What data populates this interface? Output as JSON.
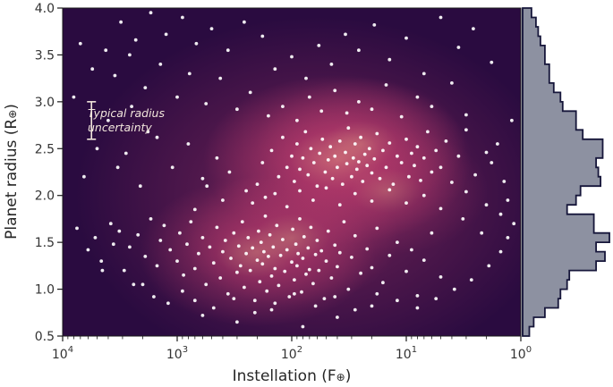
{
  "chart_data": {
    "type": "scatter",
    "xlabel": "Instellation (F",
    "xlabel_symbol": "⊕",
    "xlabel_close": ")",
    "ylabel": "Planet radius (R",
    "ylabel_symbol": "⊕",
    "ylabel_close": ")",
    "x_scale": "log",
    "x_reversed": true,
    "xlim": [
      10000,
      1
    ],
    "ylim": [
      0.5,
      4.0
    ],
    "x_ticks": [
      {
        "value": 10000,
        "base": "10",
        "exp": "4"
      },
      {
        "value": 1000,
        "base": "10",
        "exp": "3"
      },
      {
        "value": 100,
        "base": "10",
        "exp": "2"
      },
      {
        "value": 10,
        "base": "10",
        "exp": "1"
      },
      {
        "value": 1,
        "base": "10",
        "exp": "0"
      }
    ],
    "y_ticks": [
      "0.5",
      "1.0",
      "1.5",
      "2.0",
      "2.5",
      "3.0",
      "3.5",
      "4.0"
    ],
    "annotation": {
      "line1": "Typical radius",
      "line2": "uncertainty",
      "error_bar_radius_center": 2.8,
      "error_bar_half_height": 0.2,
      "error_bar_instellation": 5600
    },
    "colors": {
      "density_low": "#2a0b40",
      "density_mid": "#b3396a",
      "density_high": "#fbc98f",
      "points": "#ffffff",
      "histogram_fill": "#8d91a1",
      "histogram_edge": "#16163a"
    },
    "density_peaks": [
      {
        "instellation": 40,
        "radius": 2.38,
        "weight": 1.0
      },
      {
        "instellation": 25,
        "radius": 2.55,
        "weight": 0.45
      },
      {
        "instellation": 200,
        "radius": 1.4,
        "weight": 0.7
      },
      {
        "instellation": 100,
        "radius": 1.55,
        "weight": 0.5
      },
      {
        "instellation": 15,
        "radius": 2.05,
        "weight": 0.4
      }
    ],
    "histogram": {
      "orientation": "horizontal",
      "bins": [
        {
          "from": 0.5,
          "to": 0.6,
          "count": 3
        },
        {
          "from": 0.6,
          "to": 0.7,
          "count": 5
        },
        {
          "from": 0.7,
          "to": 0.8,
          "count": 10
        },
        {
          "from": 0.8,
          "to": 0.9,
          "count": 16
        },
        {
          "from": 0.9,
          "to": 1.0,
          "count": 17
        },
        {
          "from": 1.0,
          "to": 1.1,
          "count": 20
        },
        {
          "from": 1.1,
          "to": 1.2,
          "count": 21
        },
        {
          "from": 1.2,
          "to": 1.3,
          "count": 33
        },
        {
          "from": 1.3,
          "to": 1.4,
          "count": 37
        },
        {
          "from": 1.4,
          "to": 1.5,
          "count": 33
        },
        {
          "from": 1.5,
          "to": 1.6,
          "count": 39
        },
        {
          "from": 1.6,
          "to": 1.7,
          "count": 32
        },
        {
          "from": 1.7,
          "to": 1.8,
          "count": 32
        },
        {
          "from": 1.8,
          "to": 1.9,
          "count": 20
        },
        {
          "from": 1.9,
          "to": 2.0,
          "count": 24
        },
        {
          "from": 2.0,
          "to": 2.1,
          "count": 26
        },
        {
          "from": 2.1,
          "to": 2.2,
          "count": 35
        },
        {
          "from": 2.2,
          "to": 2.3,
          "count": 34
        },
        {
          "from": 2.3,
          "to": 2.4,
          "count": 33
        },
        {
          "from": 2.4,
          "to": 2.5,
          "count": 36
        },
        {
          "from": 2.5,
          "to": 2.6,
          "count": 36
        },
        {
          "from": 2.6,
          "to": 2.7,
          "count": 27
        },
        {
          "from": 2.7,
          "to": 2.8,
          "count": 24
        },
        {
          "from": 2.8,
          "to": 2.9,
          "count": 24
        },
        {
          "from": 2.9,
          "to": 3.0,
          "count": 18
        },
        {
          "from": 3.0,
          "to": 3.1,
          "count": 17
        },
        {
          "from": 3.1,
          "to": 3.2,
          "count": 14
        },
        {
          "from": 3.2,
          "to": 3.3,
          "count": 12
        },
        {
          "from": 3.3,
          "to": 3.4,
          "count": 12
        },
        {
          "from": 3.4,
          "to": 3.5,
          "count": 10
        },
        {
          "from": 3.5,
          "to": 3.6,
          "count": 10
        },
        {
          "from": 3.6,
          "to": 3.7,
          "count": 8
        },
        {
          "from": 3.7,
          "to": 3.8,
          "count": 7
        },
        {
          "from": 3.8,
          "to": 3.9,
          "count": 6
        },
        {
          "from": 3.9,
          "to": 4.0,
          "count": 4
        }
      ]
    },
    "points": [
      [
        3200,
        1.62
      ],
      [
        2600,
        1.45
      ],
      [
        2200,
        1.58
      ],
      [
        1900,
        1.35
      ],
      [
        1700,
        1.75
      ],
      [
        1500,
        1.25
      ],
      [
        1400,
        1.52
      ],
      [
        1300,
        1.68
      ],
      [
        1150,
        1.42
      ],
      [
        1000,
        1.3
      ],
      [
        950,
        1.6
      ],
      [
        880,
        1.15
      ],
      [
        820,
        1.48
      ],
      [
        760,
        1.72
      ],
      [
        700,
        1.22
      ],
      [
        650,
        1.38
      ],
      [
        600,
        1.55
      ],
      [
        560,
        1.05
      ],
      [
        520,
        1.45
      ],
      [
        480,
        1.28
      ],
      [
        450,
        1.66
      ],
      [
        420,
        1.12
      ],
      [
        400,
        1.4
      ],
      [
        380,
        1.52
      ],
      [
        360,
        0.95
      ],
      [
        340,
        1.33
      ],
      [
        320,
        1.6
      ],
      [
        300,
        1.18
      ],
      [
        290,
        1.46
      ],
      [
        280,
        1.25
      ],
      [
        270,
        1.72
      ],
      [
        260,
        1.02
      ],
      [
        250,
        1.38
      ],
      [
        240,
        1.55
      ],
      [
        230,
        1.2
      ],
      [
        220,
        1.44
      ],
      [
        210,
        0.88
      ],
      [
        200,
        1.31
      ],
      [
        195,
        1.62
      ],
      [
        190,
        1.08
      ],
      [
        185,
        1.5
      ],
      [
        180,
        1.27
      ],
      [
        175,
        1.4
      ],
      [
        170,
        1.78
      ],
      [
        165,
        0.98
      ],
      [
        160,
        1.35
      ],
      [
        155,
        1.58
      ],
      [
        150,
        1.14
      ],
      [
        145,
        1.45
      ],
      [
        140,
        1.22
      ],
      [
        135,
        1.68
      ],
      [
        130,
        1.04
      ],
      [
        125,
        1.36
      ],
      [
        120,
        1.53
      ],
      [
        115,
        1.19
      ],
      [
        110,
        1.42
      ],
      [
        105,
        0.92
      ],
      [
        100,
        1.29
      ],
      [
        98,
        1.64
      ],
      [
        95,
        1.1
      ],
      [
        92,
        1.48
      ],
      [
        90,
        1.25
      ],
      [
        88,
        1.38
      ],
      [
        85,
        1.75
      ],
      [
        82,
        0.97
      ],
      [
        80,
        1.33
      ],
      [
        78,
        1.56
      ],
      [
        75,
        1.16
      ],
      [
        72,
        1.44
      ],
      [
        70,
        1.21
      ],
      [
        68,
        1.66
      ],
      [
        65,
        1.06
      ],
      [
        62,
        1.37
      ],
      [
        60,
        1.52
      ],
      [
        58,
        1.2
      ],
      [
        55,
        1.41
      ],
      [
        52,
        0.9
      ],
      [
        50,
        1.3
      ],
      [
        48,
        1.62
      ],
      [
        45,
        1.12
      ],
      [
        42,
        1.47
      ],
      [
        40,
        1.24
      ],
      [
        38,
        1.39
      ],
      [
        35,
        1.72
      ],
      [
        32,
        1.0
      ],
      [
        30,
        1.34
      ],
      [
        28,
        1.57
      ],
      [
        25,
        1.17
      ],
      [
        22,
        1.43
      ],
      [
        20,
        1.23
      ],
      [
        18,
        1.65
      ],
      [
        16,
        1.07
      ],
      [
        14,
        1.36
      ],
      [
        12,
        1.5
      ],
      [
        10,
        1.19
      ],
      [
        9,
        1.42
      ],
      [
        8,
        0.93
      ],
      [
        7,
        1.31
      ],
      [
        6,
        1.6
      ],
      [
        5,
        1.13
      ],
      [
        600,
        0.72
      ],
      [
        300,
        0.65
      ],
      [
        150,
        0.78
      ],
      [
        80,
        0.6
      ],
      [
        40,
        0.7
      ],
      [
        20,
        0.82
      ],
      [
        1200,
        0.85
      ],
      [
        2400,
        1.05
      ],
      [
        4500,
        1.2
      ],
      [
        3800,
        1.7
      ],
      [
        180,
        2.35
      ],
      [
        150,
        2.48
      ],
      [
        130,
        2.2
      ],
      [
        120,
        2.62
      ],
      [
        110,
        2.3
      ],
      [
        100,
        2.42
      ],
      [
        95,
        2.15
      ],
      [
        90,
        2.55
      ],
      [
        85,
        2.28
      ],
      [
        80,
        2.4
      ],
      [
        76,
        2.68
      ],
      [
        72,
        2.22
      ],
      [
        68,
        2.5
      ],
      [
        64,
        2.35
      ],
      [
        60,
        2.1
      ],
      [
        57,
        2.45
      ],
      [
        54,
        2.6
      ],
      [
        51,
        2.25
      ],
      [
        48,
        2.38
      ],
      [
        46,
        2.52
      ],
      [
        44,
        2.18
      ],
      [
        42,
        2.42
      ],
      [
        40,
        2.3
      ],
      [
        38,
        2.58
      ],
      [
        36,
        2.12
      ],
      [
        34,
        2.46
      ],
      [
        33,
        2.34
      ],
      [
        32,
        2.72
      ],
      [
        30,
        2.2
      ],
      [
        29,
        2.4
      ],
      [
        28,
        2.55
      ],
      [
        27,
        2.28
      ],
      [
        26,
        2.36
      ],
      [
        25,
        2.62
      ],
      [
        24,
        2.15
      ],
      [
        23,
        2.44
      ],
      [
        22,
        2.32
      ],
      [
        21,
        2.5
      ],
      [
        20,
        2.24
      ],
      [
        19,
        2.39
      ],
      [
        18,
        2.66
      ],
      [
        17,
        2.18
      ],
      [
        16,
        2.48
      ],
      [
        15,
        2.3
      ],
      [
        14,
        2.56
      ],
      [
        13,
        2.12
      ],
      [
        12,
        2.42
      ],
      [
        11,
        2.35
      ],
      [
        10,
        2.6
      ],
      [
        9.5,
        2.2
      ],
      [
        9,
        2.45
      ],
      [
        8.5,
        2.32
      ],
      [
        8,
        2.52
      ],
      [
        7.5,
        2.16
      ],
      [
        7,
        2.4
      ],
      [
        6.5,
        2.68
      ],
      [
        6,
        2.25
      ],
      [
        5.5,
        2.48
      ],
      [
        5,
        2.3
      ],
      [
        4.5,
        2.58
      ],
      [
        4,
        2.14
      ],
      [
        3.5,
        2.42
      ],
      [
        3,
        2.7
      ],
      [
        2.5,
        2.22
      ],
      [
        2,
        2.46
      ],
      [
        1.8,
        2.35
      ],
      [
        1.6,
        2.55
      ],
      [
        1.4,
        2.15
      ],
      [
        1.3,
        1.95
      ],
      [
        1.2,
        2.8
      ],
      [
        250,
        2.05
      ],
      [
        220,
        1.92
      ],
      [
        200,
        2.12
      ],
      [
        170,
        1.98
      ],
      [
        140,
        2.02
      ],
      [
        110,
        1.88
      ],
      [
        85,
        2.05
      ],
      [
        65,
        1.95
      ],
      [
        50,
        2.08
      ],
      [
        38,
        1.9
      ],
      [
        28,
        2.02
      ],
      [
        20,
        1.94
      ],
      [
        14,
        2.06
      ],
      [
        10,
        1.92
      ],
      [
        7,
        2.0
      ],
      [
        5,
        1.86
      ],
      [
        3,
        2.04
      ],
      [
        2,
        1.9
      ],
      [
        1.5,
        1.8
      ],
      [
        350,
        2.25
      ],
      [
        450,
        2.4
      ],
      [
        600,
        2.18
      ],
      [
        800,
        2.55
      ],
      [
        1100,
        2.3
      ],
      [
        1500,
        2.62
      ],
      [
        2100,
        2.1
      ],
      [
        2800,
        2.45
      ],
      [
        400,
        1.95
      ],
      [
        550,
        2.1
      ],
      [
        700,
        1.85
      ],
      [
        160,
        2.85
      ],
      [
        120,
        2.95
      ],
      [
        90,
        2.8
      ],
      [
        70,
        3.05
      ],
      [
        55,
        2.9
      ],
      [
        42,
        3.12
      ],
      [
        33,
        2.88
      ],
      [
        26,
        3.0
      ],
      [
        20,
        2.92
      ],
      [
        15,
        3.18
      ],
      [
        11,
        2.84
      ],
      [
        8,
        3.05
      ],
      [
        6,
        2.95
      ],
      [
        4,
        3.2
      ],
      [
        3,
        2.86
      ],
      [
        230,
        3.1
      ],
      [
        300,
        2.92
      ],
      [
        420,
        3.25
      ],
      [
        560,
        2.98
      ],
      [
        780,
        3.3
      ],
      [
        1000,
        3.05
      ],
      [
        1400,
        3.4
      ],
      [
        1900,
        3.15
      ],
      [
        2600,
        3.5
      ],
      [
        3500,
        3.28
      ],
      [
        140,
        3.35
      ],
      [
        100,
        3.48
      ],
      [
        75,
        3.25
      ],
      [
        58,
        3.6
      ],
      [
        45,
        3.4
      ],
      [
        34,
        3.72
      ],
      [
        26,
        3.55
      ],
      [
        19,
        3.82
      ],
      [
        14,
        3.45
      ],
      [
        10,
        3.68
      ],
      [
        7,
        3.3
      ],
      [
        5,
        3.9
      ],
      [
        3.5,
        3.58
      ],
      [
        2.6,
        3.78
      ],
      [
        1.8,
        3.42
      ],
      [
        180,
        3.7
      ],
      [
        260,
        3.85
      ],
      [
        360,
        3.55
      ],
      [
        500,
        3.78
      ],
      [
        680,
        3.62
      ],
      [
        900,
        3.9
      ],
      [
        1250,
        3.72
      ],
      [
        1700,
        3.95
      ],
      [
        2300,
        3.66
      ],
      [
        3100,
        3.85
      ],
      [
        4200,
        3.55
      ],
      [
        5500,
        3.35
      ],
      [
        7000,
        3.62
      ],
      [
        8000,
        3.05
      ],
      [
        6500,
        2.2
      ],
      [
        5000,
        2.5
      ],
      [
        4000,
        2.8
      ],
      [
        3300,
        2.3
      ],
      [
        2500,
        2.95
      ],
      [
        1800,
        2.68
      ],
      [
        7500,
        1.65
      ],
      [
        6000,
        1.42
      ],
      [
        5200,
        1.55
      ],
      [
        4600,
        1.3
      ],
      [
        3600,
        1.48
      ],
      [
        2900,
        1.2
      ],
      [
        2000,
        1.05
      ],
      [
        1600,
        0.92
      ],
      [
        900,
        0.98
      ],
      [
        700,
        0.88
      ],
      [
        480,
        0.8
      ],
      [
        320,
        0.9
      ],
      [
        210,
        0.75
      ],
      [
        140,
        0.85
      ],
      [
        95,
        0.95
      ],
      [
        62,
        0.82
      ],
      [
        42,
        0.92
      ],
      [
        28,
        0.78
      ],
      [
        18,
        0.95
      ],
      [
        12,
        0.88
      ],
      [
        8,
        0.8
      ],
      [
        5.5,
        0.9
      ],
      [
        3.8,
        1.0
      ],
      [
        2.7,
        1.1
      ],
      [
        1.9,
        1.25
      ],
      [
        1.5,
        1.4
      ],
      [
        1.3,
        1.55
      ],
      [
        1.15,
        1.7
      ],
      [
        2.2,
        1.6
      ],
      [
        3.2,
        1.75
      ]
    ]
  }
}
